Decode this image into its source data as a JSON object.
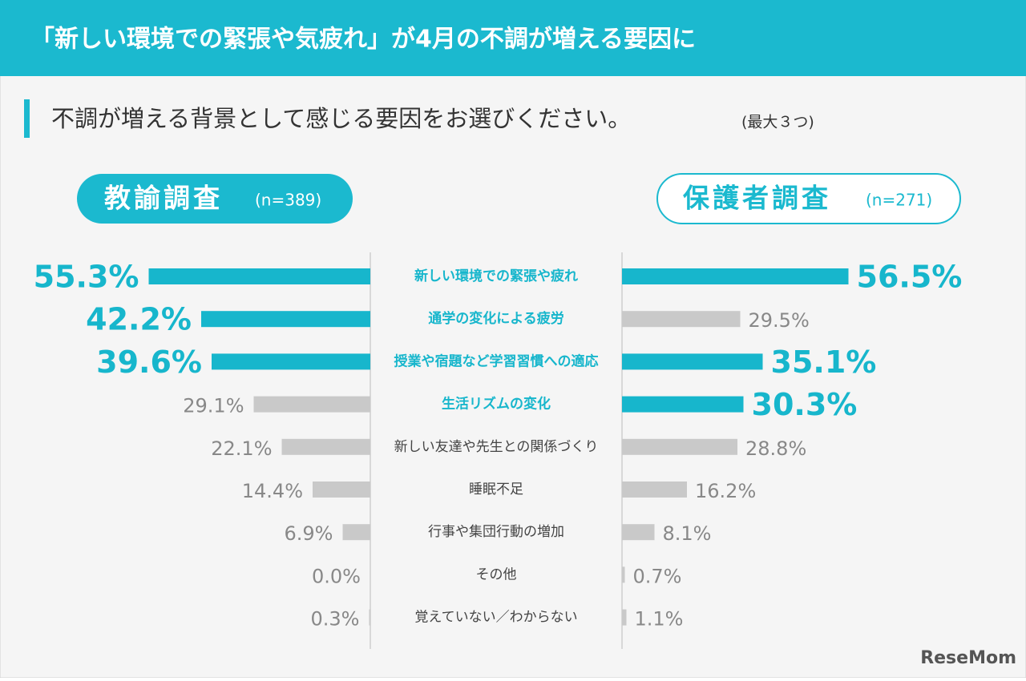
{
  "chart_data": {
    "type": "butterfly",
    "title": "「新しい環境での緊張や気疲れ」が4月の不調が増える要因に",
    "question": "不調が増える背景として感じる要因をお選びください。",
    "question_note": "(最大３つ)",
    "categories": [
      "新しい環境での緊張や疲れ",
      "通学の変化による疲労",
      "授業や宿題など学習習慣への適応",
      "生活リズムの変化",
      "新しい友達や先生との関係づくり",
      "睡眠不足",
      "行事や集団行動の増加",
      "その他",
      "覚えていない／わからない"
    ],
    "category_highlight": [
      true,
      true,
      true,
      true,
      false,
      false,
      false,
      false,
      false
    ],
    "series": [
      {
        "name": "教諭調査",
        "n_label": "(n=389)",
        "side": "left",
        "color": "#17b6cc",
        "muted_color": "#c9c9c9",
        "values": [
          55.3,
          42.2,
          39.6,
          29.1,
          22.1,
          14.4,
          6.9,
          0.0,
          0.3
        ],
        "value_labels": [
          "55.3%",
          "42.2%",
          "39.6%",
          "29.1%",
          "22.1%",
          "14.4%",
          "6.9%",
          "0.0%",
          "0.3%"
        ],
        "highlight": [
          true,
          true,
          true,
          false,
          false,
          false,
          false,
          false,
          false
        ]
      },
      {
        "name": "保護者調査",
        "n_label": "(n=271)",
        "side": "right",
        "color": "#17b6cc",
        "muted_color": "#c9c9c9",
        "values": [
          56.5,
          29.5,
          35.1,
          30.3,
          28.8,
          16.2,
          8.1,
          0.7,
          1.1
        ],
        "value_labels": [
          "56.5%",
          "29.5%",
          "35.1%",
          "30.3%",
          "28.8%",
          "16.2%",
          "8.1%",
          "0.7%",
          "1.1%"
        ],
        "highlight": [
          true,
          false,
          true,
          true,
          false,
          false,
          false,
          false,
          false
        ]
      }
    ],
    "watermark": "ReseMom"
  }
}
